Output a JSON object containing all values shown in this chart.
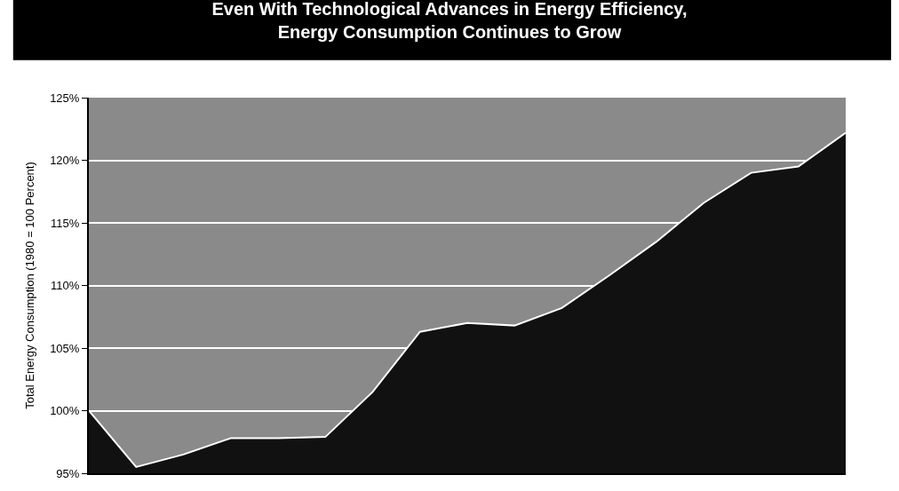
{
  "chart_data": {
    "type": "area",
    "title": "Even With Technological Advances in Energy Efficiency,\nEnergy Consumption Continues to Grow",
    "ylabel": "Total Energy Consumption (1980 = 100 Percent)",
    "categories": [
      null,
      null,
      null,
      null,
      null,
      null,
      null,
      null,
      null,
      null,
      null,
      null,
      null,
      null,
      null,
      null,
      null
    ],
    "series": [
      {
        "color": "#111111",
        "values": [
          100,
          95.5,
          96.5,
          97.8,
          97.8,
          97.9,
          101.5,
          106.3,
          107.0,
          106.8,
          108.2,
          110.8,
          113.5,
          116.6,
          119.0,
          119.5,
          122.2
        ]
      }
    ],
    "ylim": [
      95,
      125
    ],
    "yticks": [
      {
        "value": 95,
        "label": "95%"
      },
      {
        "value": 100,
        "label": "100%"
      },
      {
        "value": 105,
        "label": "105%"
      },
      {
        "value": 110,
        "label": "110%"
      },
      {
        "value": 115,
        "label": "115%"
      },
      {
        "value": 120,
        "label": "120%"
      },
      {
        "value": 125,
        "label": "125%"
      }
    ],
    "grid": "y",
    "tick_labels": "y"
  }
}
